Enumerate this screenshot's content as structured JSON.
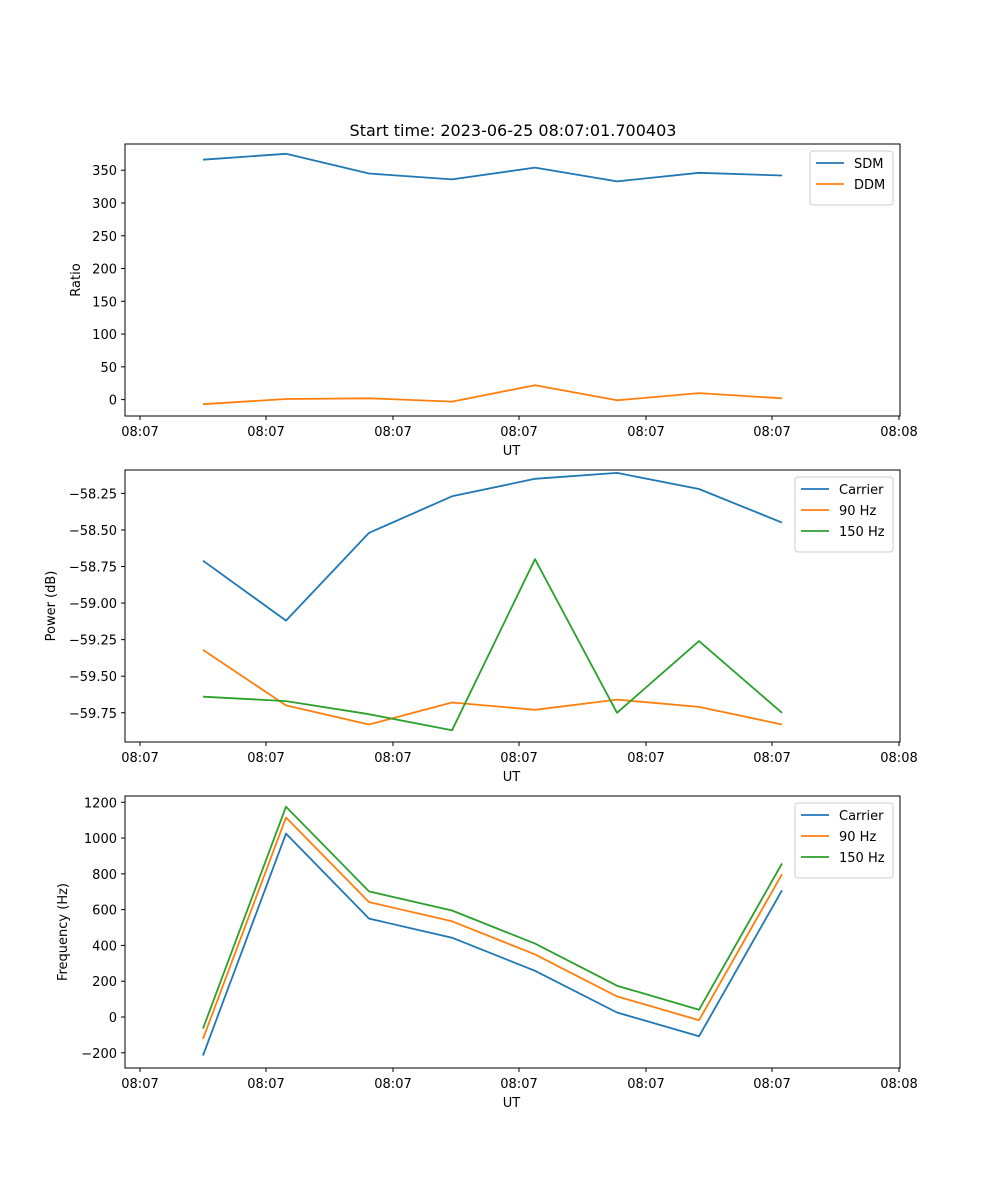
{
  "figure": {
    "title": "Start time: 2023-06-25 08:07:01.700403"
  },
  "chart_data": [
    {
      "type": "line",
      "title": "Start time: 2023-06-25 08:07:01.700403",
      "xlabel": "UT",
      "ylabel": "Ratio",
      "x_tick_labels": [
        "08:07",
        "08:07",
        "08:07",
        "08:07",
        "08:07",
        "08:07",
        "08:08"
      ],
      "y_ticks": [
        0,
        50,
        100,
        150,
        200,
        250,
        300,
        350
      ],
      "ylim": [
        -25,
        390
      ],
      "legend_position": "upper right",
      "series": [
        {
          "name": "SDM",
          "color": "#1f77b4",
          "values": [
            366,
            375,
            345,
            336,
            354,
            333,
            346,
            342
          ]
        },
        {
          "name": "DDM",
          "color": "#ff7f0e",
          "values": [
            -7,
            1,
            2,
            -3,
            22,
            -1,
            10,
            2
          ]
        }
      ]
    },
    {
      "type": "line",
      "title": "",
      "xlabel": "UT",
      "ylabel": "Power (dB)",
      "x_tick_labels": [
        "08:07",
        "08:07",
        "08:07",
        "08:07",
        "08:07",
        "08:07",
        "08:08"
      ],
      "y_ticks": [
        -58.25,
        -58.5,
        -58.75,
        -59.0,
        -59.25,
        -59.5,
        -59.75
      ],
      "y_tick_labels": [
        "−58.25",
        "−58.50",
        "−58.75",
        "−59.00",
        "−59.25",
        "−59.50",
        "−59.75"
      ],
      "ylim": [
        -59.95,
        -58.09
      ],
      "legend_position": "upper right",
      "series": [
        {
          "name": "Carrier",
          "color": "#1f77b4",
          "values": [
            -58.71,
            -59.12,
            -58.52,
            -58.27,
            -58.15,
            -58.11,
            -58.22,
            -58.45
          ]
        },
        {
          "name": "90 Hz",
          "color": "#ff7f0e",
          "values": [
            -59.32,
            -59.7,
            -59.83,
            -59.68,
            -59.73,
            -59.66,
            -59.71,
            -59.83
          ]
        },
        {
          "name": "150 Hz",
          "color": "#2ca02c",
          "values": [
            -59.64,
            -59.67,
            -59.76,
            -59.87,
            -58.7,
            -59.75,
            -59.26,
            -59.75
          ]
        }
      ]
    },
    {
      "type": "line",
      "title": "",
      "xlabel": "UT",
      "ylabel": "Frequency (Hz)",
      "x_tick_labels": [
        "08:07",
        "08:07",
        "08:07",
        "08:07",
        "08:07",
        "08:07",
        "08:08"
      ],
      "y_ticks": [
        -200,
        0,
        200,
        400,
        600,
        800,
        1000,
        1200
      ],
      "y_tick_labels": [
        "−200",
        "0",
        "200",
        "400",
        "600",
        "800",
        "1000",
        "1200"
      ],
      "ylim": [
        -285,
        1235
      ],
      "legend_position": "upper right",
      "series": [
        {
          "name": "Carrier",
          "color": "#1f77b4",
          "values": [
            -215,
            1025,
            550,
            443,
            258,
            25,
            -108,
            708
          ]
        },
        {
          "name": "90 Hz",
          "color": "#ff7f0e",
          "values": [
            -122,
            1115,
            642,
            535,
            350,
            115,
            -18,
            798
          ]
        },
        {
          "name": "150 Hz",
          "color": "#2ca02c",
          "values": [
            -65,
            1175,
            702,
            595,
            410,
            175,
            40,
            858
          ]
        }
      ]
    }
  ]
}
